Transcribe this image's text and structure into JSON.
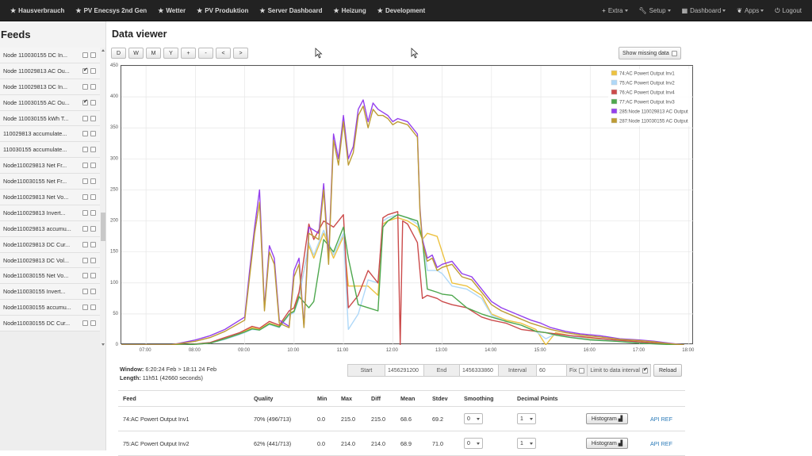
{
  "nav": {
    "left": [
      {
        "label": "Hausverbrauch",
        "icon": "star-icon"
      },
      {
        "label": "PV Enecsys 2nd Gen",
        "icon": "star-icon"
      },
      {
        "label": "Wetter",
        "icon": "star-icon"
      },
      {
        "label": "PV Produktion",
        "icon": "star-icon"
      },
      {
        "label": "Server Dashboard",
        "icon": "star-icon"
      },
      {
        "label": "Heizung",
        "icon": "star-icon"
      },
      {
        "label": "Development",
        "icon": "star-icon"
      }
    ],
    "right": [
      {
        "label": "Extra",
        "icon": "plus-icon"
      },
      {
        "label": "Setup",
        "icon": "wrench-icon"
      },
      {
        "label": "Dashboard",
        "icon": "dashboard-icon"
      },
      {
        "label": "Apps",
        "icon": "leaf-icon"
      },
      {
        "label": "Logout",
        "icon": "power-icon"
      }
    ]
  },
  "sidebar": {
    "title": "Feeds",
    "feeds": [
      {
        "name": "Node 110030155 DC In...",
        "left": false,
        "right": false
      },
      {
        "name": "Node 110029813 AC Ou...",
        "left": true,
        "right": false
      },
      {
        "name": "Node 110029813 DC In...",
        "left": false,
        "right": false
      },
      {
        "name": "Node 110030155 AC Ou...",
        "left": true,
        "right": false
      },
      {
        "name": "Node 110030155 kWh T...",
        "left": false,
        "right": false
      },
      {
        "name": "110029813 accumulate...",
        "left": false,
        "right": false
      },
      {
        "name": "110030155 accumulate...",
        "left": false,
        "right": false
      },
      {
        "name": "Node110029813 Net Fr...",
        "left": false,
        "right": false
      },
      {
        "name": "Node110030155 Net Fr...",
        "left": false,
        "right": false
      },
      {
        "name": "Node110029813 Net Vo...",
        "left": false,
        "right": false
      },
      {
        "name": "Node110029813 Invert...",
        "left": false,
        "right": false
      },
      {
        "name": "Node110029813 accumu...",
        "left": false,
        "right": false
      },
      {
        "name": "Node110029813 DC Cur...",
        "left": false,
        "right": false
      },
      {
        "name": "Node110029813 DC Vol...",
        "left": false,
        "right": false
      },
      {
        "name": "Node110030155 Net Vo...",
        "left": false,
        "right": false
      },
      {
        "name": "Node110030155 Invert...",
        "left": false,
        "right": false
      },
      {
        "name": "Node110030155 accumu...",
        "left": false,
        "right": false
      },
      {
        "name": "Node110030155 DC Cur...",
        "left": false,
        "right": false
      }
    ]
  },
  "main": {
    "title": "Data viewer",
    "buttons": [
      "D",
      "W",
      "M",
      "Y",
      "+",
      "-",
      "<",
      ">"
    ],
    "show_missing": "Show missing data"
  },
  "chart_data": {
    "type": "line",
    "xlim": [
      6.5,
      18.1
    ],
    "ylim": [
      0,
      450
    ],
    "xticks": [
      "07:00",
      "08:00",
      "09:00",
      "10:00",
      "11:00",
      "12:00",
      "13:00",
      "14:00",
      "15:00",
      "16:00",
      "17:00",
      "18:00"
    ],
    "yticks": [
      0,
      50,
      100,
      150,
      200,
      250,
      300,
      350,
      400,
      450
    ],
    "legend_position": "top-right",
    "grid": true,
    "series": [
      {
        "name": "74:AC Powert Output Inv1",
        "color": "#edc240",
        "x": [
          6.5,
          7.8,
          8.3,
          8.6,
          8.9,
          9.0,
          9.15,
          9.3,
          9.5,
          9.7,
          9.9,
          10.0,
          10.1,
          10.3,
          10.4,
          10.6,
          10.8,
          11.0,
          11.1,
          11.3,
          11.5,
          11.7,
          11.8,
          11.9,
          12.1,
          12.3,
          12.5,
          12.6,
          12.7,
          12.9,
          13.0,
          13.2,
          13.5,
          13.8,
          14.0,
          14.3,
          14.6,
          14.9,
          15.1,
          15.3,
          15.6,
          16.0,
          16.5,
          17.0,
          17.5,
          17.9
        ],
        "y": [
          0,
          0,
          3,
          10,
          18,
          22,
          28,
          25,
          35,
          30,
          50,
          55,
          80,
          160,
          140,
          180,
          140,
          175,
          95,
          95,
          95,
          80,
          195,
          200,
          205,
          200,
          190,
          170,
          180,
          175,
          150,
          100,
          95,
          80,
          50,
          40,
          35,
          25,
          0,
          20,
          15,
          10,
          8,
          5,
          2,
          0
        ]
      },
      {
        "name": "75:AC Powert Output Inv2",
        "color": "#afd8f8",
        "x": [
          6.5,
          7.8,
          8.3,
          8.6,
          8.9,
          9.0,
          9.15,
          9.3,
          9.5,
          9.7,
          9.9,
          10.0,
          10.1,
          10.3,
          10.4,
          10.6,
          10.8,
          11.0,
          11.1,
          11.3,
          11.5,
          11.7,
          11.8,
          11.9,
          12.1,
          12.3,
          12.5,
          12.6,
          12.7,
          12.9,
          13.0,
          13.2,
          13.5,
          13.8,
          14.0,
          14.3,
          14.6,
          14.9,
          15.1,
          15.3,
          15.6,
          16.0,
          16.5,
          17.0,
          17.5,
          17.9
        ],
        "y": [
          0,
          0,
          3,
          9,
          17,
          20,
          25,
          24,
          33,
          28,
          48,
          52,
          75,
          165,
          145,
          185,
          145,
          180,
          25,
          50,
          105,
          100,
          200,
          205,
          210,
          205,
          195,
          175,
          120,
          120,
          115,
          95,
          90,
          75,
          48,
          38,
          32,
          22,
          10,
          18,
          14,
          9,
          7,
          4,
          2,
          0
        ]
      },
      {
        "name": "76:AC Powert Output Inv4",
        "color": "#cb4b4b",
        "x": [
          6.5,
          7.8,
          8.3,
          8.6,
          8.9,
          9.0,
          9.15,
          9.3,
          9.5,
          9.7,
          9.9,
          10.0,
          10.1,
          10.3,
          10.4,
          10.6,
          10.8,
          11.0,
          11.1,
          11.3,
          11.5,
          11.7,
          11.8,
          11.9,
          12.1,
          12.15,
          12.2,
          12.3,
          12.5,
          12.6,
          12.7,
          12.9,
          13.0,
          13.2,
          13.5,
          13.8,
          14.0,
          14.3,
          14.6,
          14.9,
          15.1,
          15.3,
          15.6,
          16.0,
          16.5,
          17.0,
          17.5,
          17.9
        ],
        "y": [
          0,
          0,
          4,
          12,
          20,
          24,
          30,
          27,
          38,
          32,
          55,
          60,
          85,
          195,
          170,
          200,
          190,
          210,
          60,
          80,
          120,
          100,
          205,
          210,
          215,
          0,
          200,
          195,
          165,
          75,
          80,
          75,
          70,
          65,
          60,
          45,
          40,
          35,
          25,
          22,
          20,
          18,
          15,
          12,
          8,
          5,
          2,
          0
        ]
      },
      {
        "name": "77:AC Powert Output Inv3",
        "color": "#4da74d",
        "x": [
          6.5,
          7.8,
          8.3,
          8.6,
          8.9,
          9.0,
          9.15,
          9.3,
          9.5,
          9.7,
          9.9,
          10.0,
          10.1,
          10.3,
          10.4,
          10.6,
          10.8,
          11.0,
          11.1,
          11.3,
          11.5,
          11.7,
          11.8,
          11.9,
          12.1,
          12.3,
          12.5,
          12.6,
          12.7,
          12.9,
          13.0,
          13.2,
          13.5,
          13.8,
          14.0,
          14.3,
          14.6,
          14.9,
          15.1,
          15.3,
          15.6,
          16.0,
          16.5,
          17.0,
          17.5,
          17.9
        ],
        "y": [
          0,
          0,
          3,
          10,
          18,
          21,
          26,
          24,
          34,
          29,
          50,
          54,
          78,
          60,
          70,
          170,
          150,
          190,
          140,
          65,
          60,
          55,
          190,
          200,
          210,
          205,
          200,
          170,
          90,
          85,
          82,
          80,
          60,
          50,
          45,
          38,
          32,
          22,
          20,
          16,
          12,
          8,
          6,
          3,
          1,
          0
        ]
      },
      {
        "name": "285:Node 110029813 AC Output",
        "color": "#9440ed",
        "x": [
          6.5,
          7.5,
          8.0,
          8.3,
          8.6,
          9.0,
          9.1,
          9.2,
          9.3,
          9.4,
          9.5,
          9.6,
          9.7,
          9.9,
          10.0,
          10.1,
          10.2,
          10.3,
          10.5,
          10.6,
          10.7,
          10.8,
          10.9,
          11.0,
          11.1,
          11.2,
          11.3,
          11.4,
          11.5,
          11.6,
          11.7,
          11.8,
          11.9,
          12.0,
          12.1,
          12.3,
          12.5,
          12.55,
          12.6,
          12.7,
          12.8,
          12.9,
          13.0,
          13.2,
          13.4,
          13.6,
          13.8,
          14.0,
          14.2,
          14.5,
          14.8,
          15.0,
          15.2,
          15.5,
          15.8,
          16.2,
          16.6,
          17.0,
          17.3,
          17.5,
          17.9
        ],
        "y": [
          0,
          0,
          8,
          15,
          25,
          45,
          120,
          190,
          250,
          60,
          160,
          140,
          40,
          30,
          120,
          140,
          30,
          190,
          180,
          260,
          140,
          340,
          300,
          370,
          300,
          320,
          380,
          395,
          360,
          390,
          380,
          375,
          370,
          360,
          365,
          360,
          340,
          220,
          170,
          140,
          145,
          125,
          130,
          135,
          115,
          110,
          90,
          70,
          60,
          50,
          40,
          35,
          28,
          22,
          18,
          15,
          10,
          8,
          6,
          4,
          0
        ]
      },
      {
        "name": "287:Node 110030155 AC Output",
        "color": "#bd9b33",
        "x": [
          6.5,
          7.5,
          8.0,
          8.3,
          8.6,
          9.0,
          9.1,
          9.2,
          9.3,
          9.4,
          9.5,
          9.6,
          9.7,
          9.9,
          10.0,
          10.1,
          10.2,
          10.3,
          10.5,
          10.6,
          10.7,
          10.8,
          10.9,
          11.0,
          11.1,
          11.2,
          11.3,
          11.4,
          11.5,
          11.6,
          11.7,
          11.8,
          11.9,
          12.0,
          12.1,
          12.3,
          12.5,
          12.55,
          12.6,
          12.7,
          12.8,
          12.9,
          13.0,
          13.2,
          13.4,
          13.6,
          13.8,
          14.0,
          14.2,
          14.5,
          14.8,
          15.0,
          15.2,
          15.5,
          15.8,
          16.2,
          16.6,
          17.0,
          17.3,
          17.5,
          17.9
        ],
        "y": [
          0,
          0,
          6,
          12,
          22,
          40,
          110,
          180,
          230,
          55,
          150,
          130,
          35,
          28,
          110,
          130,
          28,
          180,
          170,
          250,
          130,
          330,
          290,
          360,
          290,
          310,
          370,
          385,
          350,
          380,
          370,
          370,
          365,
          355,
          360,
          355,
          335,
          215,
          165,
          135,
          140,
          120,
          125,
          130,
          110,
          105,
          85,
          65,
          55,
          45,
          35,
          30,
          25,
          20,
          16,
          13,
          9,
          7,
          5,
          3,
          0
        ]
      }
    ]
  },
  "info": {
    "window_label": "Window:",
    "window_value": "6:20:24 Feb > 18:11 24 Feb",
    "length_label": "Length:",
    "length_value": "11h51 (42660 seconds)",
    "start_label": "Start",
    "start_value": "1456291200",
    "end_label": "End",
    "end_value": "1456333860",
    "interval_label": "Interval",
    "interval_value": "60",
    "fix_label": "Fix",
    "limit_label": "Limit to data interval",
    "reload_label": "Reload"
  },
  "stats": {
    "headers": [
      "Feed",
      "Quality",
      "Min",
      "Max",
      "Diff",
      "Mean",
      "Stdev",
      "Smoothing",
      "Decimal Points"
    ],
    "rows": [
      {
        "feed": "74:AC Powert Output Inv1",
        "quality": "70% (496/713)",
        "min": "0.0",
        "max": "215.0",
        "diff": "215.0",
        "mean": "68.6",
        "stdev": "69.2",
        "smoothing": "0",
        "decimals": "1",
        "hist": "Histogram",
        "api": "API REF"
      },
      {
        "feed": "75:AC Powert Output Inv2",
        "quality": "62% (441/713)",
        "min": "0.0",
        "max": "214.0",
        "diff": "214.0",
        "mean": "68.9",
        "stdev": "71.0",
        "smoothing": "0",
        "decimals": "1",
        "hist": "Histogram",
        "api": "API REF"
      }
    ]
  }
}
